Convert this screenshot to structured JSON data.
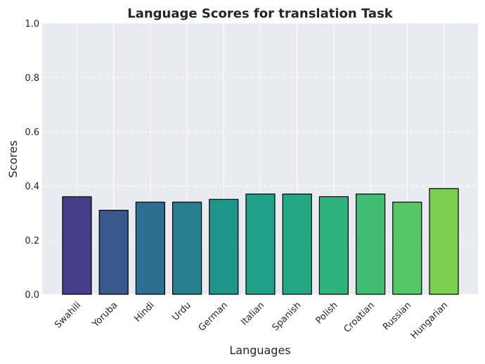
{
  "chart_data": {
    "type": "bar",
    "title": "Language Scores for translation Task",
    "xlabel": "Languages",
    "ylabel": "Scores",
    "ylim": [
      0,
      1.0
    ],
    "yticks": [
      "0.0",
      "0.2",
      "0.4",
      "0.6",
      "0.8",
      "1.0"
    ],
    "categories": [
      "Swahili",
      "Yoruba",
      "Hindi",
      "Urdu",
      "German",
      "Italian",
      "Spanish",
      "Polish",
      "Croatian",
      "Russian",
      "Hungarian"
    ],
    "values": [
      0.36,
      0.31,
      0.34,
      0.34,
      0.35,
      0.37,
      0.37,
      0.36,
      0.37,
      0.34,
      0.39
    ],
    "colors": [
      "#433e85",
      "#38588c",
      "#2d6f8e",
      "#277f8e",
      "#1f958b",
      "#1fa187",
      "#22a884",
      "#2eb37c",
      "#40bd72",
      "#57c666",
      "#7ad151"
    ],
    "grid": true,
    "background": "#eaeaf2"
  }
}
